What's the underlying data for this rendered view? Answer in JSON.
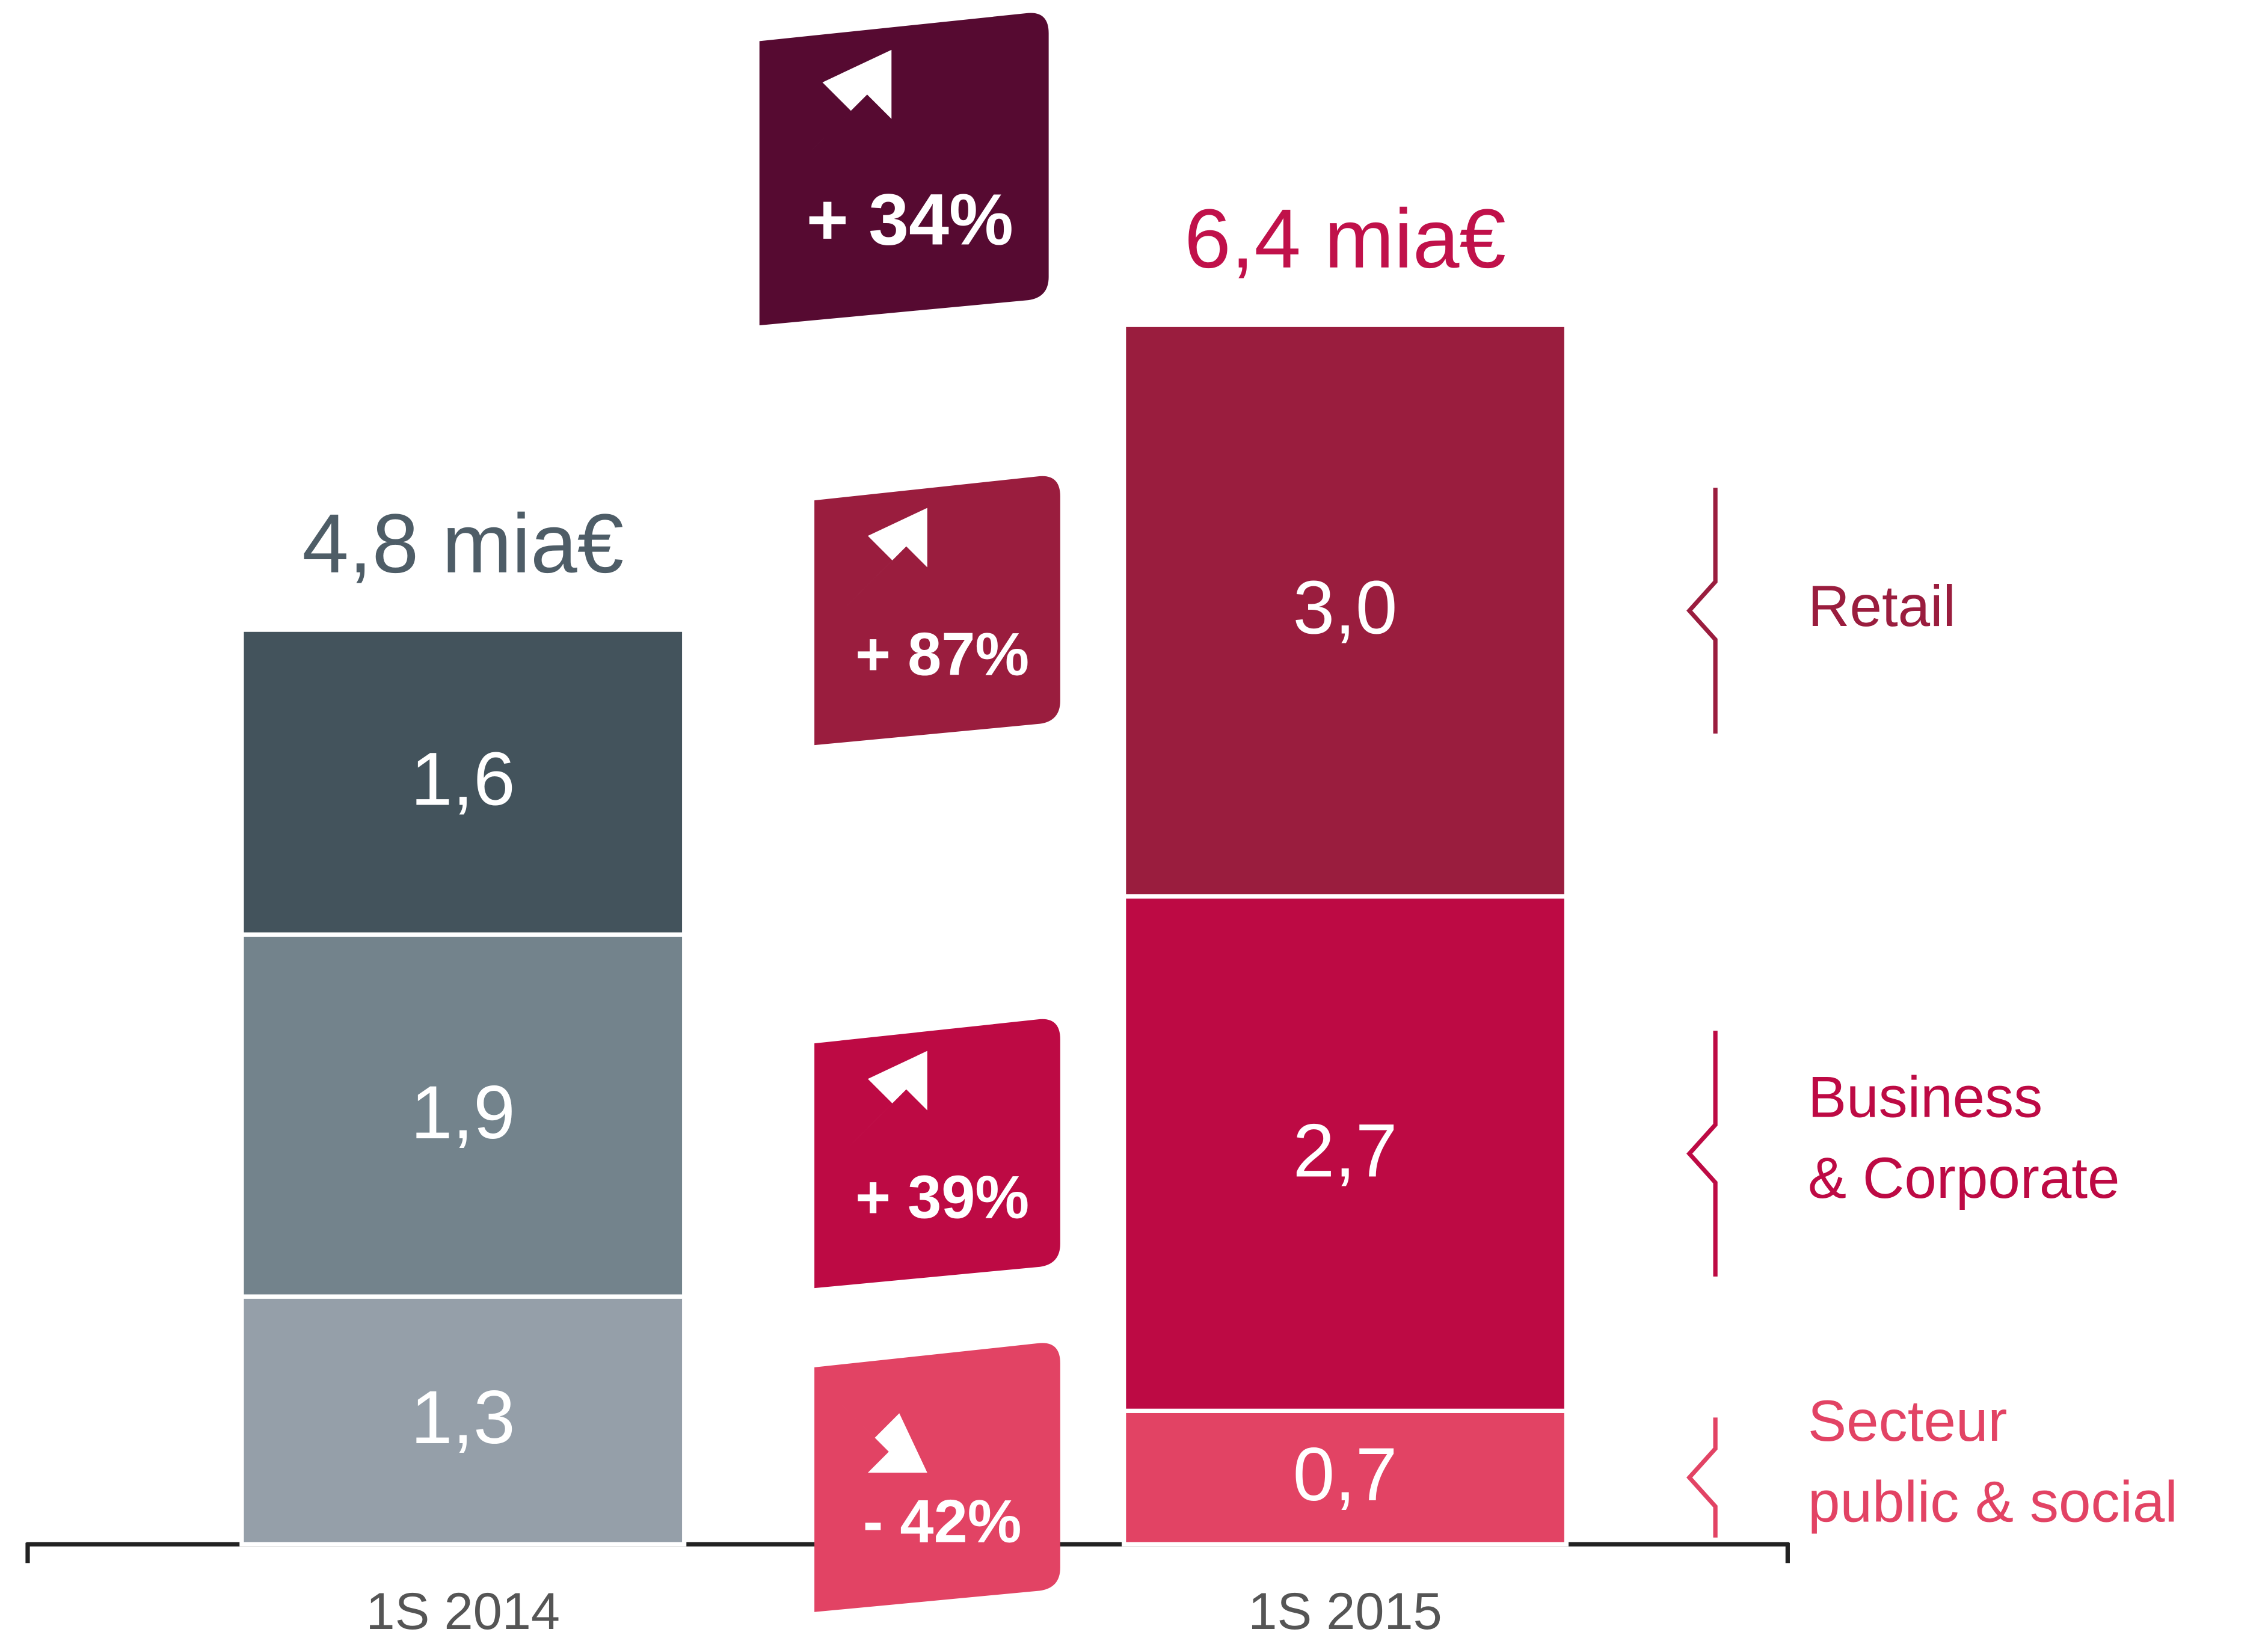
{
  "chart_data": {
    "type": "stacked_bar",
    "categories": [
      "1S 2014",
      "1S 2015"
    ],
    "ylim": [
      0,
      7
    ],
    "totals": [
      "4,8 mia€",
      "6,4 mia€"
    ],
    "total_colors": [
      "#4e5d67",
      "#c0114a"
    ],
    "total_change": {
      "label": "+ 34%",
      "direction": "up",
      "color": "#560a31"
    },
    "series": [
      {
        "name": [
          "Secteur",
          "public & social"
        ],
        "values": [
          1.3,
          0.7
        ],
        "value_labels": [
          "1,3",
          "0,7"
        ],
        "colors": [
          "#959fa9",
          "#e24364"
        ],
        "legend_color": "#e24364",
        "change": {
          "label": "- 42%",
          "direction": "down",
          "color": "#e24364"
        }
      },
      {
        "name": [
          "Business",
          "& Corporate"
        ],
        "values": [
          1.9,
          2.7
        ],
        "value_labels": [
          "1,9",
          "2,7"
        ],
        "colors": [
          "#73838c",
          "#bd0a44"
        ],
        "legend_color": "#bd0a44",
        "change": {
          "label": "+ 39%",
          "direction": "up",
          "color": "#bd0a44"
        }
      },
      {
        "name": [
          "Retail"
        ],
        "values": [
          1.6,
          3.0
        ],
        "value_labels": [
          "1,6",
          "3,0"
        ],
        "colors": [
          "#43535c",
          "#9a1d3e"
        ],
        "legend_color": "#9a1d3e",
        "change": {
          "label": "+ 87%",
          "direction": "up",
          "color": "#9a1d3e"
        }
      }
    ]
  }
}
